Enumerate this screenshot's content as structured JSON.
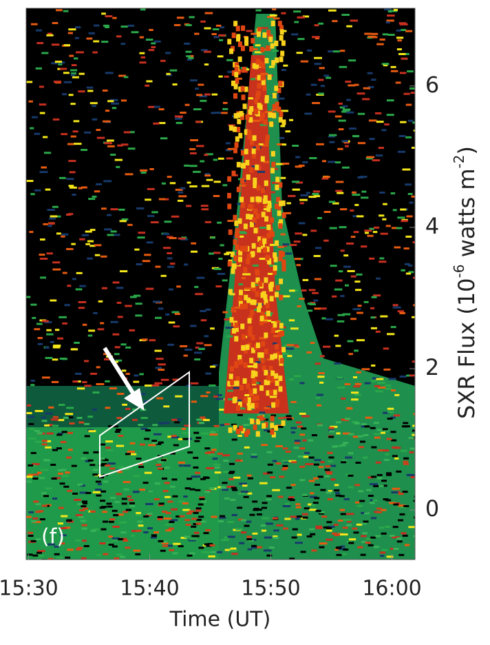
{
  "chart_data": {
    "type": "spectrogram",
    "panel_label": "(f)",
    "xlabel": "Time (UT)",
    "ylabel": {
      "parts": [
        "SXR Flux (10",
        "-6",
        " watts m",
        "-2",
        ")"
      ]
    },
    "xlim": [
      929.8,
      961.9
    ],
    "xticks": [
      {
        "value": 930,
        "label": "15:30"
      },
      {
        "value": 940,
        "label": "15:40"
      },
      {
        "value": 950,
        "label": "15:50"
      },
      {
        "value": 960,
        "label": "16:00"
      }
    ],
    "ylim": [
      -0.7,
      7.1
    ],
    "yticks": [
      0,
      2,
      4,
      6
    ]
  }
}
